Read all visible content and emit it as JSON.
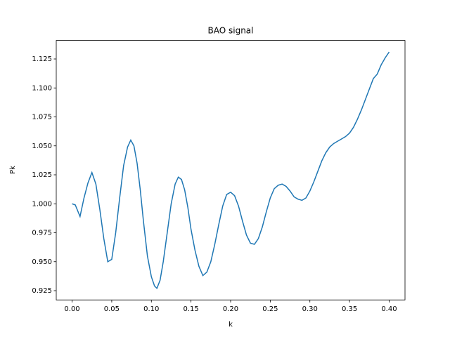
{
  "chart_data": {
    "type": "line",
    "title": "BAO signal",
    "xlabel": "k",
    "ylabel": "Pk",
    "x": [
      0,
      0.004,
      0.01,
      0.015,
      0.02,
      0.025,
      0.03,
      0.035,
      0.04,
      0.045,
      0.05,
      0.055,
      0.06,
      0.065,
      0.07,
      0.074,
      0.078,
      0.082,
      0.086,
      0.09,
      0.095,
      0.1,
      0.104,
      0.107,
      0.111,
      0.115,
      0.12,
      0.125,
      0.13,
      0.134,
      0.138,
      0.142,
      0.146,
      0.15,
      0.155,
      0.16,
      0.165,
      0.17,
      0.175,
      0.18,
      0.185,
      0.19,
      0.195,
      0.2,
      0.205,
      0.21,
      0.215,
      0.22,
      0.225,
      0.23,
      0.235,
      0.24,
      0.245,
      0.25,
      0.255,
      0.26,
      0.265,
      0.27,
      0.275,
      0.28,
      0.285,
      0.29,
      0.295,
      0.3,
      0.305,
      0.31,
      0.315,
      0.32,
      0.325,
      0.33,
      0.335,
      0.34,
      0.345,
      0.35,
      0.355,
      0.36,
      0.365,
      0.37,
      0.375,
      0.38,
      0.385,
      0.39,
      0.395,
      0.4
    ],
    "series": [
      {
        "name": "Pk",
        "color": "#1f77b4",
        "values": [
          1.0,
          0.999,
          0.989,
          1.005,
          1.018,
          1.027,
          1.017,
          0.995,
          0.97,
          0.95,
          0.952,
          0.975,
          1.005,
          1.033,
          1.049,
          1.055,
          1.05,
          1.035,
          1.012,
          0.985,
          0.955,
          0.937,
          0.929,
          0.927,
          0.934,
          0.95,
          0.975,
          1.0,
          1.017,
          1.023,
          1.021,
          1.012,
          0.997,
          0.978,
          0.96,
          0.946,
          0.938,
          0.941,
          0.95,
          0.965,
          0.982,
          0.998,
          1.008,
          1.01,
          1.007,
          0.998,
          0.985,
          0.973,
          0.966,
          0.965,
          0.97,
          0.98,
          0.993,
          1.005,
          1.013,
          1.016,
          1.017,
          1.015,
          1.011,
          1.006,
          1.004,
          1.003,
          1.005,
          1.011,
          1.019,
          1.028,
          1.037,
          1.044,
          1.049,
          1.052,
          1.054,
          1.056,
          1.058,
          1.061,
          1.066,
          1.073,
          1.081,
          1.09,
          1.099,
          1.108,
          1.112,
          1.12,
          1.126,
          1.131
        ]
      }
    ],
    "xlim": [
      -0.02,
      0.42
    ],
    "xticks": [
      {
        "value": 0,
        "label": "0.00"
      },
      0.05,
      {
        "value": 0.1,
        "label": "0.10"
      },
      0.15,
      {
        "value": 0.2,
        "label": "0.20"
      },
      0.25,
      {
        "value": 0.3,
        "label": "0.30"
      },
      0.35,
      {
        "value": 0.4,
        "label": "0.40"
      }
    ],
    "ylim": [
      0.917,
      1.141
    ],
    "yticks": [
      0.925,
      {
        "value": 0.95,
        "label": "0.950"
      },
      0.975,
      {
        "value": 1,
        "label": "1.000"
      },
      1.025,
      {
        "value": 1.05,
        "label": "1.050"
      },
      1.075,
      {
        "value": 1.1,
        "label": "1.100"
      },
      1.125
    ]
  }
}
